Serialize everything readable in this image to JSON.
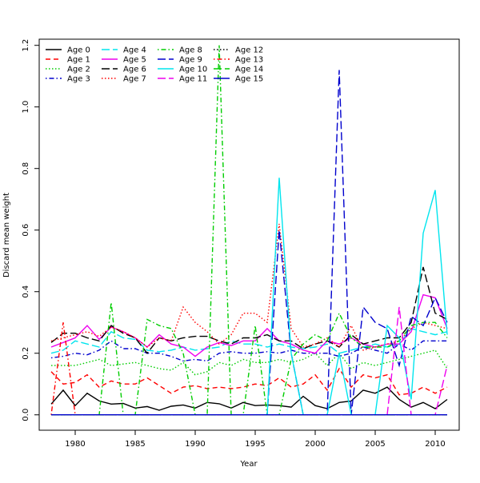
{
  "chart_data": {
    "type": "line",
    "title": "",
    "xlabel": "Year",
    "ylabel": "Discard mean weight",
    "xlim": [
      1977,
      2012
    ],
    "ylim": [
      -0.05,
      1.22
    ],
    "xticks": [
      1980,
      1985,
      1990,
      1995,
      2000,
      2005,
      2010
    ],
    "yticks": [
      0.0,
      0.2,
      0.4,
      0.6,
      0.8,
      1.0,
      1.2
    ],
    "x_tick_labels": [
      "1980",
      "1985",
      "1990",
      "1995",
      "2000",
      "2005",
      "2010"
    ],
    "y_tick_labels": [
      "0.0",
      "0.2",
      "0.4",
      "0.6",
      "0.8",
      "1.0",
      "1.2"
    ],
    "grid": false,
    "legend_position": "top-left",
    "legend_columns": 4,
    "x": [
      1978,
      1979,
      1980,
      1981,
      1982,
      1983,
      1984,
      1985,
      1986,
      1987,
      1988,
      1989,
      1990,
      1991,
      1992,
      1993,
      1994,
      1995,
      1996,
      1997,
      1998,
      1999,
      2000,
      2001,
      2002,
      2003,
      2004,
      2005,
      2006,
      2007,
      2008,
      2009,
      2010,
      2011
    ],
    "series": [
      {
        "name": "Age 0",
        "color": "#000000",
        "dash": "solid",
        "values": [
          0.035,
          0.08,
          0.03,
          0.07,
          0.045,
          0.035,
          0.037,
          0.022,
          0.027,
          0.015,
          0.028,
          0.032,
          0.022,
          0.04,
          0.036,
          0.022,
          0.04,
          0.03,
          0.032,
          0.03,
          0.025,
          0.06,
          0.03,
          0.02,
          0.04,
          0.045,
          0.08,
          0.07,
          0.09,
          0.05,
          0.025,
          0.04,
          0.02,
          0.05
        ]
      },
      {
        "name": "Age 1",
        "color": "#ff0000",
        "dash": "dashed",
        "values": [
          0.14,
          0.1,
          0.105,
          0.13,
          0.09,
          0.11,
          0.1,
          0.1,
          0.12,
          0.095,
          0.07,
          0.09,
          0.095,
          0.085,
          0.09,
          0.085,
          0.09,
          0.1,
          0.095,
          0.12,
          0.09,
          0.1,
          0.13,
          0.08,
          0.15,
          0.09,
          0.13,
          0.12,
          0.13,
          0.065,
          0.07,
          0.09,
          0.07,
          0.09
        ]
      },
      {
        "name": "Age 2",
        "color": "#00cd00",
        "dash": "dotted",
        "values": [
          0.16,
          0.16,
          0.16,
          0.17,
          0.18,
          0.16,
          0.165,
          0.17,
          0.16,
          0.15,
          0.145,
          0.17,
          0.13,
          0.14,
          0.17,
          0.16,
          0.18,
          0.17,
          0.17,
          0.18,
          0.17,
          0.18,
          0.2,
          0.16,
          0.2,
          0.15,
          0.17,
          0.16,
          0.17,
          0.18,
          0.19,
          0.2,
          0.21,
          0.15
        ]
      },
      {
        "name": "Age 3",
        "color": "#0000cd",
        "dash": "dotdash",
        "values": [
          0.185,
          0.19,
          0.2,
          0.195,
          0.21,
          0.24,
          0.215,
          0.215,
          0.2,
          0.2,
          0.19,
          0.175,
          0.18,
          0.175,
          0.2,
          0.205,
          0.2,
          0.2,
          0.205,
          0.2,
          0.21,
          0.2,
          0.2,
          0.2,
          0.19,
          0.2,
          0.22,
          0.21,
          0.2,
          0.23,
          0.21,
          0.24,
          0.24,
          0.24
        ]
      },
      {
        "name": "Age 4",
        "color": "#00e5ee",
        "dash": "longdash",
        "values": [
          0.2,
          0.21,
          0.24,
          0.23,
          0.22,
          0.27,
          0.25,
          0.245,
          0.21,
          0.205,
          0.21,
          0.22,
          0.21,
          0.215,
          0.22,
          0.24,
          0.23,
          0.23,
          0.22,
          0.23,
          0.22,
          0.215,
          0.22,
          0.23,
          0.2,
          0.21,
          0.22,
          0.23,
          0.22,
          0.23,
          0.28,
          0.27,
          0.26,
          0.27
        ]
      },
      {
        "name": "Age 5",
        "color": "#ee00ee",
        "dash": "solid",
        "values": [
          0.22,
          0.235,
          0.25,
          0.29,
          0.245,
          0.285,
          0.27,
          0.25,
          0.22,
          0.26,
          0.23,
          0.22,
          0.19,
          0.22,
          0.235,
          0.225,
          0.24,
          0.24,
          0.28,
          0.24,
          0.23,
          0.21,
          0.2,
          0.24,
          0.23,
          0.25,
          0.23,
          0.22,
          0.23,
          0.23,
          0.27,
          0.39,
          0.38,
          0.28
        ]
      },
      {
        "name": "Age 6",
        "color": "#000000",
        "dash": "longdash",
        "values": [
          0.235,
          0.265,
          0.265,
          0.25,
          0.24,
          0.29,
          0.265,
          0.25,
          0.2,
          0.25,
          0.24,
          0.25,
          0.255,
          0.255,
          0.24,
          0.23,
          0.25,
          0.25,
          0.26,
          0.24,
          0.24,
          0.215,
          0.23,
          0.24,
          0.22,
          0.26,
          0.23,
          0.24,
          0.25,
          0.25,
          0.3,
          0.48,
          0.33,
          0.31
        ]
      },
      {
        "name": "Age 7",
        "color": "#ff0000",
        "dash": "dotted",
        "values": [
          0.24,
          0.25,
          0.26,
          0.27,
          0.255,
          0.285,
          0.27,
          0.25,
          0.22,
          0.25,
          0.24,
          0.35,
          0.3,
          0.27,
          0.23,
          0.26,
          0.33,
          0.33,
          0.3,
          0.62,
          0.28,
          0.22,
          0.23,
          0.25,
          0.22,
          0.29,
          0.21,
          0.22,
          0.23,
          0.24,
          0.28,
          0.3,
          0.29,
          0.28
        ]
      },
      {
        "name": "Age 8",
        "color": "#00cd00",
        "dash": "dotdash",
        "values": [
          0.0,
          0.0,
          0.0,
          0.0,
          0.0,
          0.365,
          0.0,
          0.0,
          0.31,
          0.29,
          0.28,
          0.2,
          0.0,
          0.0,
          1.2,
          0.0,
          0.0,
          0.29,
          0.0,
          0.0,
          0.18,
          0.23,
          0.26,
          0.24,
          0.33,
          0.25,
          0.22,
          0.22,
          0.22,
          0.24,
          0.29,
          0.3,
          0.3,
          0.25
        ]
      },
      {
        "name": "Age 9",
        "color": "#0000cd",
        "dash": "longdash",
        "values": [
          0.0,
          0.0,
          0.0,
          0.0,
          0.0,
          0.0,
          0.0,
          0.0,
          0.0,
          0.0,
          0.0,
          0.0,
          0.0,
          0.0,
          0.0,
          0.0,
          0.0,
          0.0,
          0.0,
          0.6,
          0.2,
          0.0,
          0.0,
          0.0,
          1.12,
          0.0,
          0.35,
          0.3,
          0.28,
          0.16,
          0.32,
          0.29,
          0.38,
          0.3
        ]
      },
      {
        "name": "Age 10",
        "color": "#00e5ee",
        "dash": "solid",
        "values": [
          0.0,
          0.0,
          0.0,
          0.0,
          0.0,
          0.0,
          0.0,
          0.0,
          0.0,
          0.0,
          0.0,
          0.0,
          0.0,
          0.0,
          0.0,
          0.0,
          0.0,
          0.0,
          0.0,
          0.77,
          0.2,
          0.0,
          0.0,
          0.0,
          0.2,
          0.0,
          0.0,
          0.0,
          0.29,
          0.25,
          0.05,
          0.59,
          0.73,
          0.26
        ]
      },
      {
        "name": "Age 11",
        "color": "#ee00ee",
        "dash": "longdash",
        "values": [
          0.0,
          0.0,
          0.0,
          0.0,
          0.0,
          0.0,
          0.0,
          0.0,
          0.0,
          0.0,
          0.0,
          0.0,
          0.0,
          0.0,
          0.0,
          0.0,
          0.0,
          0.0,
          0.0,
          0.0,
          0.0,
          0.0,
          0.0,
          0.0,
          0.0,
          0.0,
          0.0,
          0.0,
          0.0,
          0.35,
          0.0,
          0.0,
          0.0,
          0.16
        ]
      },
      {
        "name": "Age 12",
        "color": "#000000",
        "dash": "dotted",
        "values": [
          0.0,
          0.0,
          0.0,
          0.0,
          0.0,
          0.0,
          0.0,
          0.0,
          0.0,
          0.0,
          0.0,
          0.0,
          0.0,
          0.0,
          0.0,
          0.0,
          0.0,
          0.0,
          0.0,
          0.0,
          0.0,
          0.0,
          0.0,
          0.0,
          0.0,
          0.0,
          0.0,
          0.0,
          0.0,
          0.0,
          0.0,
          0.0,
          0.0,
          0.0
        ]
      },
      {
        "name": "Age 13",
        "color": "#ff0000",
        "dash": "dotdash",
        "values": [
          0.0,
          0.3,
          0.0,
          0.0,
          0.0,
          0.0,
          0.0,
          0.0,
          0.0,
          0.0,
          0.0,
          0.0,
          0.0,
          0.0,
          0.0,
          0.0,
          0.0,
          0.0,
          0.0,
          0.0,
          0.0,
          0.0,
          0.0,
          0.0,
          0.0,
          0.0,
          0.0,
          0.0,
          0.0,
          0.0,
          0.0,
          0.0,
          0.0,
          0.0
        ]
      },
      {
        "name": "Age 14",
        "color": "#00cd00",
        "dash": "longdash",
        "values": [
          0.0,
          0.0,
          0.0,
          0.0,
          0.0,
          0.0,
          0.0,
          0.0,
          0.0,
          0.0,
          0.0,
          0.0,
          0.0,
          0.0,
          0.0,
          0.0,
          0.0,
          0.0,
          0.0,
          0.0,
          0.0,
          0.0,
          0.0,
          0.0,
          0.0,
          0.0,
          0.0,
          0.0,
          0.0,
          0.0,
          0.0,
          0.0,
          0.0,
          0.0
        ]
      },
      {
        "name": "Age 15",
        "color": "#0000cd",
        "dash": "solid",
        "values": [
          0.0,
          0.0,
          0.0,
          0.0,
          0.0,
          0.0,
          0.0,
          0.0,
          0.0,
          0.0,
          0.0,
          0.0,
          0.0,
          0.0,
          0.0,
          0.0,
          0.0,
          0.0,
          0.0,
          0.0,
          0.0,
          0.0,
          0.0,
          0.0,
          0.0,
          0.0,
          0.0,
          0.0,
          0.0,
          0.0,
          0.0,
          0.0,
          0.0,
          0.0
        ]
      }
    ]
  }
}
